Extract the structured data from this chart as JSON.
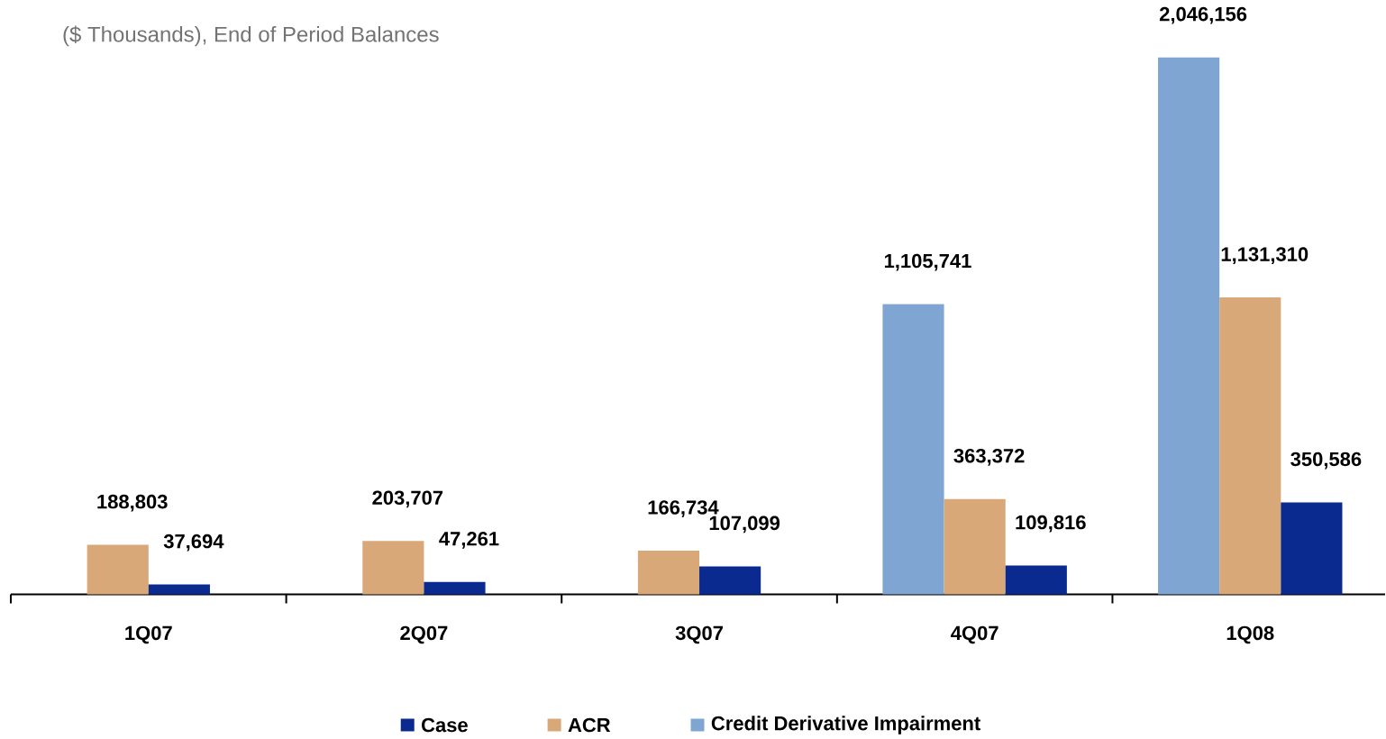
{
  "chart_data": {
    "type": "bar",
    "title": "($ Thousands), End of Period Balances",
    "categories": [
      "1Q07",
      "2Q07",
      "3Q07",
      "4Q07",
      "1Q08"
    ],
    "series": [
      {
        "name": "Credit Derivative Impairment",
        "color": "#7fa6d2",
        "values": [
          null,
          null,
          null,
          1105741,
          2046156
        ],
        "value_labels": [
          null,
          null,
          null,
          "1,105,741",
          "2,046,156"
        ]
      },
      {
        "name": "ACR",
        "color": "#d9a878",
        "values": [
          188803,
          203707,
          166734,
          363372,
          1131310
        ],
        "value_labels": [
          "188,803",
          "203,707",
          "166,734",
          "363,372",
          "1,131,310"
        ]
      },
      {
        "name": "Case",
        "color": "#0b2a8f",
        "values": [
          37694,
          47261,
          107099,
          109816,
          350586
        ],
        "value_labels": [
          "37,694",
          "47,261",
          "107,099",
          "109,816",
          "350,586"
        ]
      }
    ],
    "legend": "bottom"
  }
}
